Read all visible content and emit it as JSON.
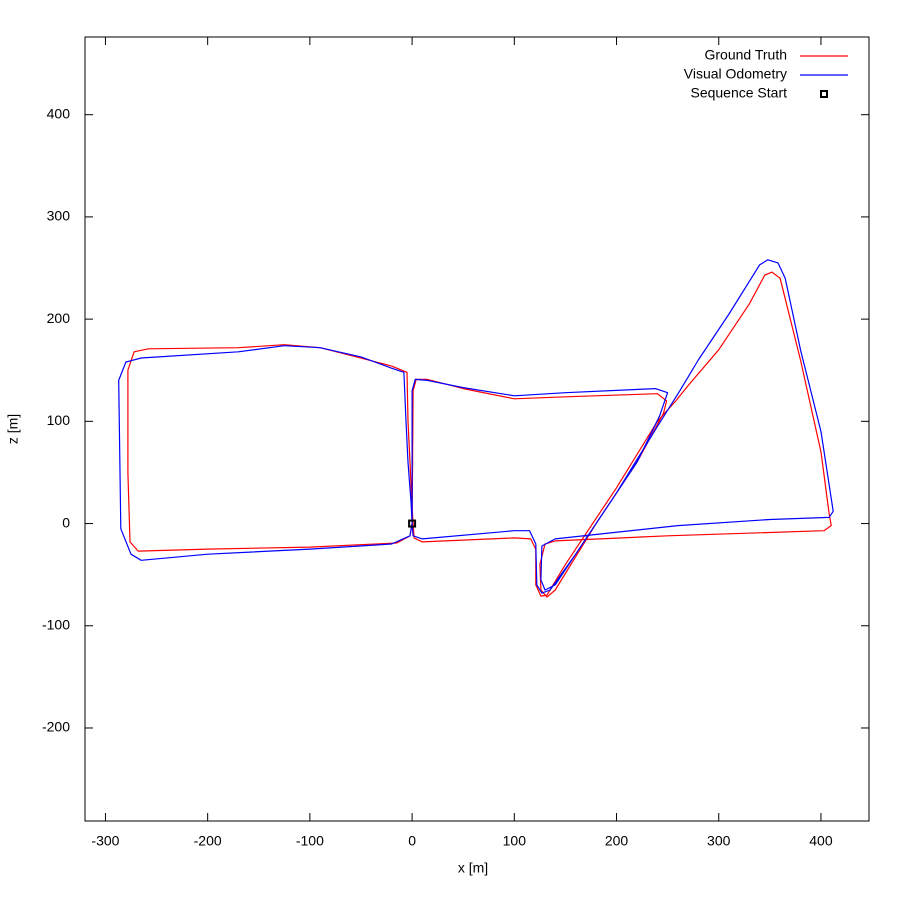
{
  "chart_data": {
    "type": "line",
    "x_label": "x [m]",
    "y_label": "z [m]",
    "xlim": [
      -320,
      447
    ],
    "ylim": [
      -291,
      476
    ],
    "xticks": [
      -300,
      -200,
      -100,
      0,
      100,
      200,
      300,
      400
    ],
    "yticks": [
      -200,
      -100,
      0,
      100,
      200,
      300,
      400
    ],
    "legend": "top-right",
    "series": [
      {
        "name": "Ground Truth",
        "color": "#ff0000",
        "style": "line",
        "x": [
          0,
          -2,
          -15,
          -100,
          -200,
          -268,
          -276,
          -278,
          -278,
          -272,
          -258,
          -170,
          -125,
          -90,
          -50,
          -20,
          -5,
          -4,
          -2,
          0,
          2,
          10,
          100,
          116,
          121,
          121,
          126,
          132,
          150,
          200,
          240,
          258,
          270,
          300,
          330,
          345,
          352,
          360,
          380,
          400,
          408,
          410,
          403,
          250,
          140,
          130,
          125,
          126,
          132,
          140,
          180,
          220,
          246,
          249,
          240,
          150,
          100,
          50,
          15,
          4,
          1,
          0
        ],
        "values": [
          0,
          -12,
          -19,
          -23,
          -25,
          -27,
          -18,
          50,
          150,
          168,
          171,
          172,
          175,
          172,
          162,
          154,
          148,
          100,
          60,
          15,
          -14,
          -18,
          -14,
          -15,
          -25,
          -60,
          -71,
          -70,
          -40,
          35,
          100,
          120,
          135,
          170,
          215,
          243,
          246,
          240,
          160,
          70,
          10,
          -2,
          -7,
          -12,
          -17,
          -20,
          -40,
          -65,
          -72,
          -65,
          0,
          60,
          108,
          120,
          127,
          124,
          122,
          132,
          141,
          141,
          130,
          0
        ]
      },
      {
        "name": "Visual Odometry",
        "color": "#0000ff",
        "style": "line",
        "x": [
          0,
          -2,
          -20,
          -100,
          -200,
          -265,
          -275,
          -285,
          -287,
          -280,
          -265,
          -170,
          -125,
          -90,
          -50,
          -20,
          -8,
          -6,
          -4,
          -1,
          0,
          1,
          10,
          100,
          115,
          121,
          122,
          127,
          135,
          160,
          200,
          240,
          262,
          280,
          310,
          340,
          348,
          358,
          365,
          380,
          400,
          412,
          408,
          350,
          260,
          140,
          127,
          126,
          130,
          140,
          180,
          220,
          242,
          250,
          238,
          150,
          100,
          50,
          15,
          3,
          0,
          0
        ],
        "values": [
          0,
          -12,
          -20,
          -25,
          -30,
          -36,
          -30,
          -5,
          140,
          158,
          162,
          168,
          174,
          172,
          163,
          152,
          148,
          100,
          60,
          20,
          0,
          -12,
          -15,
          -7,
          -7,
          -20,
          -60,
          -68,
          -65,
          -30,
          30,
          95,
          130,
          160,
          205,
          253,
          258,
          255,
          240,
          170,
          90,
          12,
          6,
          4,
          -2,
          -15,
          -22,
          -55,
          -65,
          -60,
          0,
          60,
          105,
          128,
          132,
          128,
          125,
          133,
          140,
          141,
          130,
          0
        ]
      },
      {
        "name": "Sequence Start",
        "color": "#000000",
        "style": "square",
        "x": [
          0
        ],
        "values": [
          0
        ]
      }
    ]
  }
}
